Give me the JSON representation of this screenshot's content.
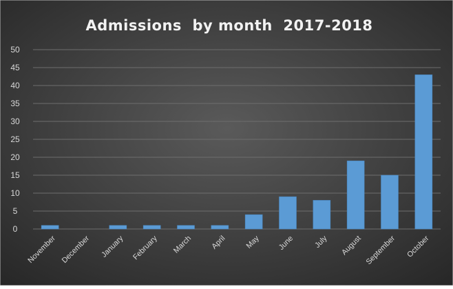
{
  "chart_data": {
    "type": "bar",
    "title": "Admissions  by month  2017-2018",
    "xlabel": "",
    "ylabel": "",
    "categories": [
      "November",
      "December",
      "January",
      "February",
      "March",
      "April",
      "May",
      "June",
      "July",
      "August",
      "September",
      "October"
    ],
    "values": [
      1,
      0,
      1,
      1,
      1,
      1,
      4,
      9,
      8,
      19,
      15,
      43
    ],
    "ylim": [
      0,
      50
    ],
    "yticks": [
      "0",
      "5",
      "10",
      "15",
      "20",
      "25",
      "30",
      "35",
      "40",
      "45",
      "50"
    ],
    "grid": true,
    "legend": "none"
  },
  "colors": {
    "background_center": "#5a5a5a",
    "background_edge": "#262626",
    "bar": "#5b9bd5",
    "bar_edge": "#4a86bf",
    "gridline": "#6e6e6e",
    "text": "#d9d9d9",
    "title": "#f2f2f2"
  }
}
